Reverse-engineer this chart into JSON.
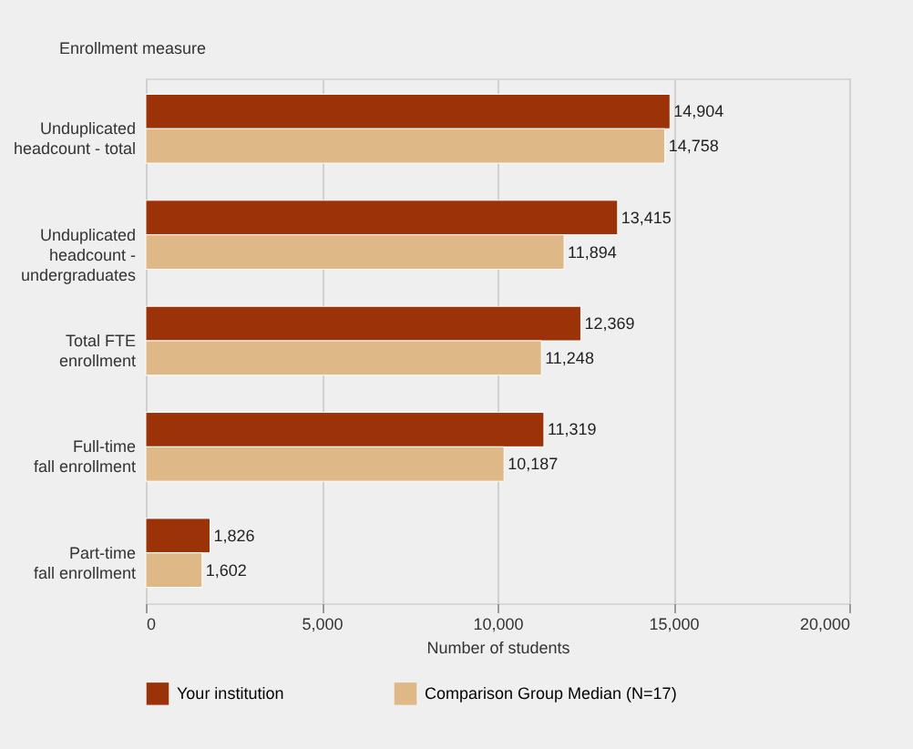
{
  "chart_data": {
    "type": "bar",
    "orientation": "horizontal",
    "ylabel": "Enrollment measure",
    "xlabel": "Number of students",
    "categories": [
      "Unduplicated\nheadcount - total",
      "Unduplicated\nheadcount -\nundergraduates",
      "Total FTE\nenrollment",
      "Full-time\nfall enrollment",
      "Part-time\nfall enrollment"
    ],
    "series": [
      {
        "name": "Your institution",
        "color": "#9c3208",
        "values": [
          14904,
          13415,
          12369,
          11319,
          1826
        ],
        "value_labels": [
          "14,904",
          "13,415",
          "12,369",
          "11,319",
          "1,826"
        ]
      },
      {
        "name": "Comparison Group Median (N=17)",
        "color": "#dfb887",
        "values": [
          14758,
          11894,
          11248,
          10187,
          1602
        ],
        "value_labels": [
          "14,758",
          "11,894",
          "11,248",
          "10,187",
          "1,602"
        ]
      }
    ],
    "xlim": [
      0,
      20000
    ],
    "xticks": [
      {
        "value": 0,
        "label": "0"
      },
      {
        "value": 5000,
        "label": "5,000"
      },
      {
        "value": 10000,
        "label": "10,000"
      },
      {
        "value": 15000,
        "label": "15,000"
      },
      {
        "value": 20000,
        "label": "20,000"
      }
    ],
    "grid": "x",
    "legend": "bottom left"
  }
}
